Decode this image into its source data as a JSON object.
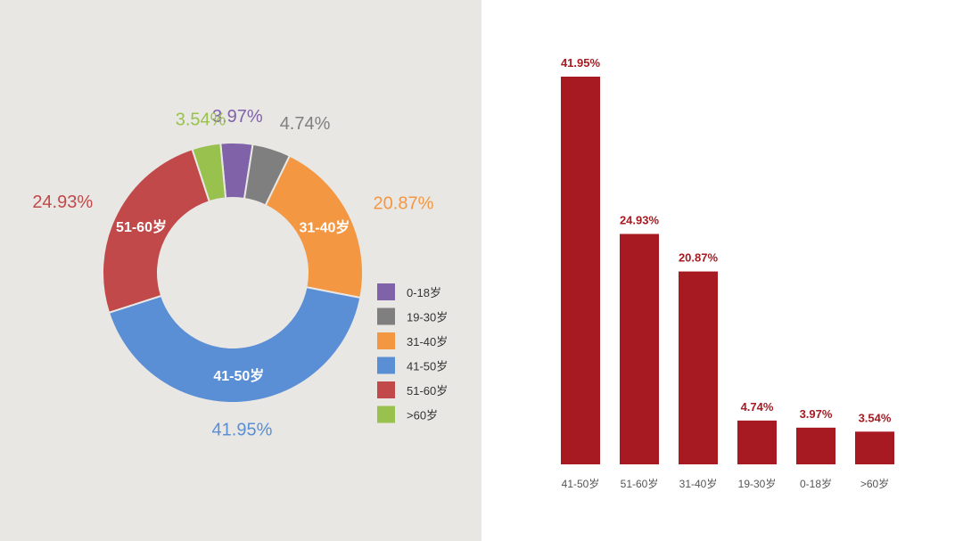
{
  "chart_data": [
    {
      "type": "pie",
      "variant": "donut",
      "categories": [
        "0-18岁",
        "19-30岁",
        "31-40岁",
        "41-50岁",
        "51-60岁",
        ">60岁"
      ],
      "values": [
        3.97,
        4.74,
        20.87,
        41.95,
        24.93,
        3.54
      ],
      "value_labels": [
        "3.97%",
        "4.74%",
        "20.87%",
        "41.95%",
        "24.93%",
        "3.54%"
      ],
      "colors": [
        "#8062a8",
        "#7f7f7f",
        "#f39743",
        "#5a8fd6",
        "#c1494a",
        "#98c24d"
      ],
      "inner_labels": [
        "",
        "",
        "31-40岁",
        "41-50岁",
        "51-60岁",
        ""
      ],
      "legend": {
        "position": "right",
        "entries": [
          "0-18岁",
          "19-30岁",
          "31-40岁",
          "41-50岁",
          "51-60岁",
          ">60岁"
        ]
      }
    },
    {
      "type": "bar",
      "categories": [
        "41-50岁",
        "51-60岁",
        "31-40岁",
        "19-30岁",
        "0-18岁",
        ">60岁"
      ],
      "values": [
        41.95,
        24.93,
        20.87,
        4.74,
        3.97,
        3.54
      ],
      "value_labels": [
        "41.95%",
        "24.93%",
        "20.87%",
        "4.74%",
        "3.97%",
        "3.54%"
      ],
      "color": "#a81a22",
      "ylim": [
        0,
        41.95
      ],
      "grid": false
    }
  ]
}
